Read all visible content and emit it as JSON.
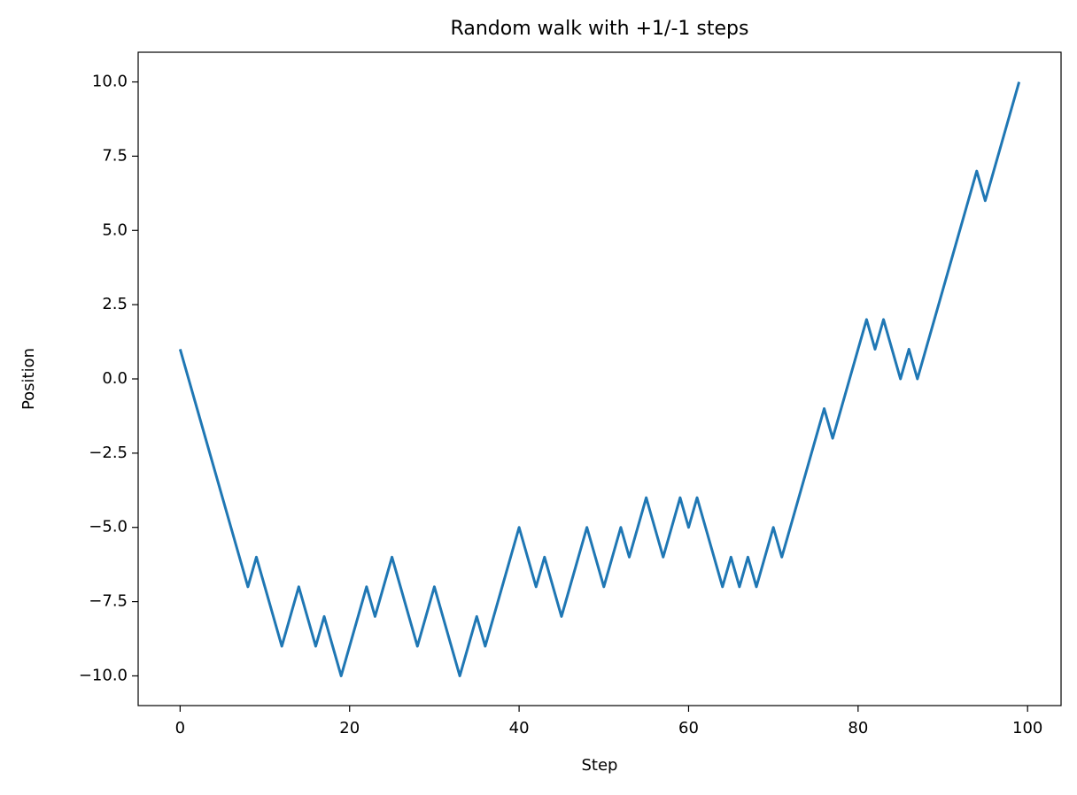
{
  "chart_data": {
    "type": "line",
    "title": "Random walk with +1/-1 steps",
    "x_label": "Step",
    "y_label": "Position",
    "x": [
      0,
      1,
      2,
      3,
      4,
      5,
      6,
      7,
      8,
      9,
      10,
      11,
      12,
      13,
      14,
      15,
      16,
      17,
      18,
      19,
      20,
      21,
      22,
      23,
      24,
      25,
      26,
      27,
      28,
      29,
      30,
      31,
      32,
      33,
      34,
      35,
      36,
      37,
      38,
      39,
      40,
      41,
      42,
      43,
      44,
      45,
      46,
      47,
      48,
      49,
      50,
      51,
      52,
      53,
      54,
      55,
      56,
      57,
      58,
      59,
      60,
      61,
      62,
      63,
      64,
      65,
      66,
      67,
      68,
      69,
      70,
      71,
      72,
      73,
      74,
      75,
      76,
      77,
      78,
      79,
      80,
      81,
      82,
      83,
      84,
      85,
      86,
      87,
      88,
      89,
      90,
      91,
      92,
      93,
      94,
      95,
      96,
      97,
      98,
      99
    ],
    "series": [
      {
        "color": "#1f77b4",
        "values": [
          1,
          0,
          -1,
          -2,
          -3,
          -4,
          -5,
          -6,
          -7,
          -6,
          -7,
          -8,
          -9,
          -8,
          -7,
          -8,
          -9,
          -8,
          -9,
          -10,
          -9,
          -8,
          -7,
          -8,
          -7,
          -6,
          -7,
          -8,
          -9,
          -8,
          -7,
          -8,
          -9,
          -10,
          -9,
          -8,
          -9,
          -8,
          -7,
          -6,
          -5,
          -6,
          -7,
          -6,
          -7,
          -8,
          -7,
          -6,
          -5,
          -6,
          -7,
          -6,
          -5,
          -6,
          -5,
          -4,
          -5,
          -6,
          -5,
          -4,
          -5,
          -4,
          -5,
          -6,
          -7,
          -6,
          -7,
          -6,
          -7,
          -6,
          -5,
          -6,
          -5,
          -4,
          -3,
          -2,
          -1,
          -2,
          -1,
          0,
          1,
          2,
          1,
          2,
          1,
          0,
          1,
          0,
          1,
          2,
          3,
          4,
          5,
          6,
          7,
          6,
          7,
          8,
          9,
          10
        ]
      }
    ],
    "xlim": [
      -4.95,
      103.95
    ],
    "xticks": [
      0,
      20,
      40,
      60,
      80,
      100
    ],
    "ylim": [
      -11,
      11
    ],
    "yticks": [
      {
        "value": -10,
        "label": "−10.0"
      },
      {
        "value": -7.5,
        "label": "−7.5"
      },
      {
        "value": -5,
        "label": "−5.0"
      },
      {
        "value": -2.5,
        "label": "−2.5"
      },
      {
        "value": 0,
        "label": "0.0"
      },
      2.5,
      {
        "value": 5,
        "label": "5.0"
      },
      7.5,
      {
        "value": 10,
        "label": "10.0"
      }
    ],
    "grid": false
  }
}
